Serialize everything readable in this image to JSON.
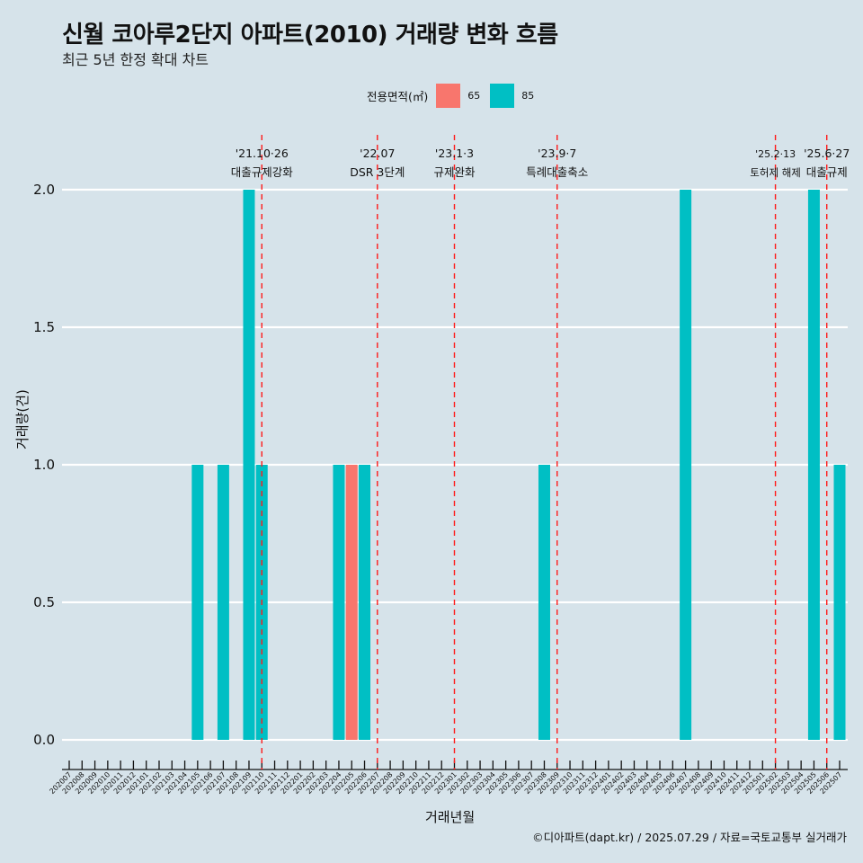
{
  "header": {
    "title": "신월 코아루2단지 아파트(2010) 거래량 변화 흐름",
    "subtitle": "최근 5년 한정 확대 차트"
  },
  "legend": {
    "title": "전용면적(㎡)",
    "items": [
      {
        "label": "65",
        "color": "#f8766d"
      },
      {
        "label": "85",
        "color": "#00bfc4"
      }
    ]
  },
  "caption": "©디아파트(dapt.kr) / 2025.07.29 / 자료=국토교통부 실거래가",
  "chart_data": {
    "type": "bar",
    "title": "신월 코아루2단지 아파트(2010) 거래량 변화 흐름",
    "subtitle": "최근 5년 한정 확대 차트",
    "xlabel": "거래년월",
    "ylabel": "거래량(건)",
    "ylim": [
      0,
      2
    ],
    "yticks": [
      "0.0",
      "0.5",
      "1.0",
      "1.5",
      "2.0"
    ],
    "grid": true,
    "legend_position": "top",
    "categories": [
      "202007",
      "202008",
      "202009",
      "202010",
      "202011",
      "202012",
      "202101",
      "202102",
      "202103",
      "202104",
      "202105",
      "202106",
      "202107",
      "202108",
      "202109",
      "202110",
      "202111",
      "202112",
      "202201",
      "202202",
      "202203",
      "202204",
      "202205",
      "202206",
      "202207",
      "202208",
      "202209",
      "202210",
      "202211",
      "202212",
      "202301",
      "202302",
      "202303",
      "202304",
      "202305",
      "202306",
      "202307",
      "202308",
      "202309",
      "202310",
      "202311",
      "202312",
      "202401",
      "202402",
      "202403",
      "202404",
      "202405",
      "202406",
      "202407",
      "202408",
      "202409",
      "202410",
      "202411",
      "202412",
      "202501",
      "202502",
      "202503",
      "202504",
      "202505",
      "202506",
      "202507"
    ],
    "series": [
      {
        "name": "65",
        "color": "#f8766d",
        "points": [
          {
            "x": "202205",
            "y": 1
          }
        ]
      },
      {
        "name": "85",
        "color": "#00bfc4",
        "points": [
          {
            "x": "202105",
            "y": 1
          },
          {
            "x": "202107",
            "y": 1
          },
          {
            "x": "202109",
            "y": 2
          },
          {
            "x": "202110",
            "y": 1
          },
          {
            "x": "202204",
            "y": 1
          },
          {
            "x": "202206",
            "y": 1
          },
          {
            "x": "202308",
            "y": 1
          },
          {
            "x": "202407",
            "y": 2
          },
          {
            "x": "202505",
            "y": 2
          },
          {
            "x": "202507",
            "y": 1
          }
        ]
      }
    ],
    "annotations": [
      {
        "x": "202110",
        "line1": "'21.10·26",
        "line2": "대출규제강화"
      },
      {
        "x": "202207",
        "line1": "'22.07",
        "line2": "DSR 3단계"
      },
      {
        "x": "202301",
        "line1": "'23.1·3",
        "line2": "규제완화"
      },
      {
        "x": "202309",
        "line1": "'23.9·7",
        "line2": "특례대출축소"
      },
      {
        "x": "202502",
        "line1": "'25.2·13",
        "line2": "토허제 해제"
      },
      {
        "x": "202506",
        "line1": "'25.6·27",
        "line2": "대출규제"
      }
    ]
  }
}
